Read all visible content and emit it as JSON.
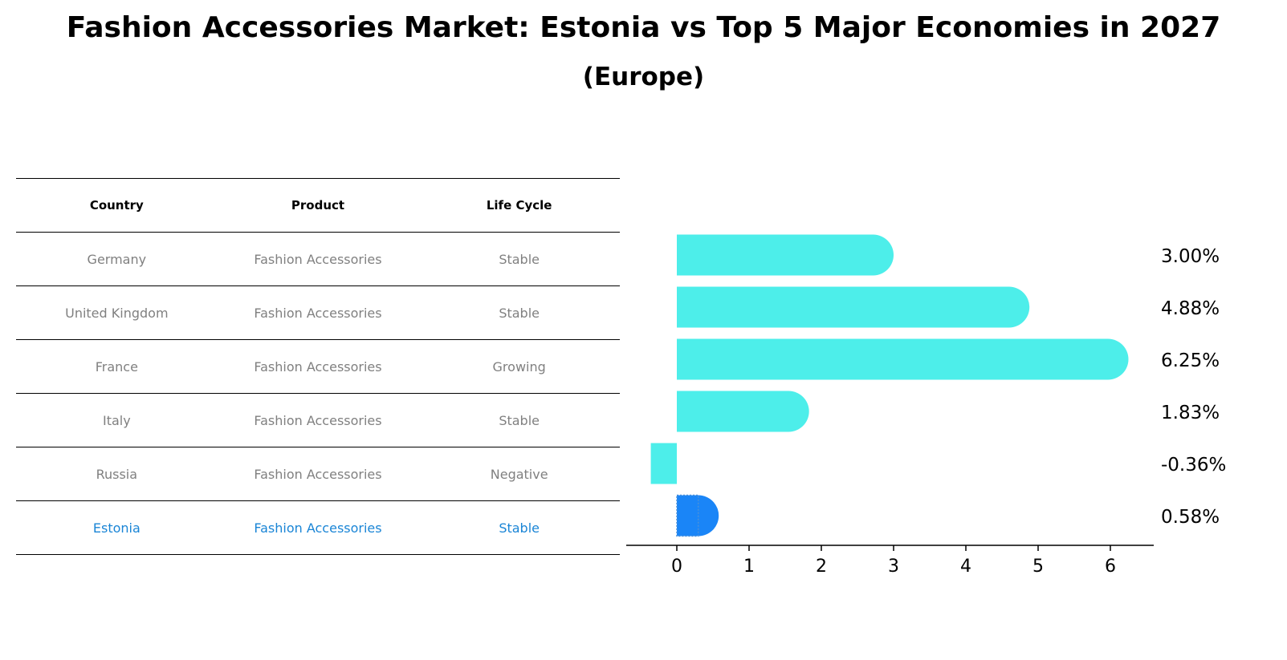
{
  "title": "Fashion Accessories Market: Estonia vs Top 5 Major Economies in 2027",
  "subtitle": "(Europe)",
  "table": {
    "headers": [
      "Country",
      "Product",
      "Life Cycle"
    ],
    "rows": [
      [
        "Germany",
        "Fashion Accessories",
        "Stable"
      ],
      [
        "United Kingdom",
        "Fashion Accessories",
        "Stable"
      ],
      [
        "France",
        "Fashion Accessories",
        "Growing"
      ],
      [
        "Italy",
        "Fashion Accessories",
        "Stable"
      ],
      [
        "Russia",
        "Fashion Accessories",
        "Negative"
      ],
      [
        "Estonia",
        "Fashion Accessories",
        "Stable"
      ]
    ],
    "highlight_row": 5,
    "highlight_color": "#1a85d6",
    "row_text_color": "#808080"
  },
  "chart_data": {
    "type": "bar",
    "orientation": "horizontal",
    "categories": [
      "Germany",
      "United Kingdom",
      "France",
      "Italy",
      "Russia",
      "Estonia"
    ],
    "values": [
      3.0,
      4.88,
      6.25,
      1.83,
      -0.36,
      0.58
    ],
    "value_labels": [
      "3.00%",
      "4.88%",
      "6.25%",
      "1.83%",
      "-0.36%",
      "0.58%"
    ],
    "xlim": [
      -0.7,
      6.6
    ],
    "xticks": [
      0,
      1,
      2,
      3,
      4,
      5,
      6
    ],
    "bar_color": "#4deeea",
    "highlight_color": "#1a85f7",
    "highlight_index": 5,
    "grid": false,
    "y_axis_visible": false
  }
}
